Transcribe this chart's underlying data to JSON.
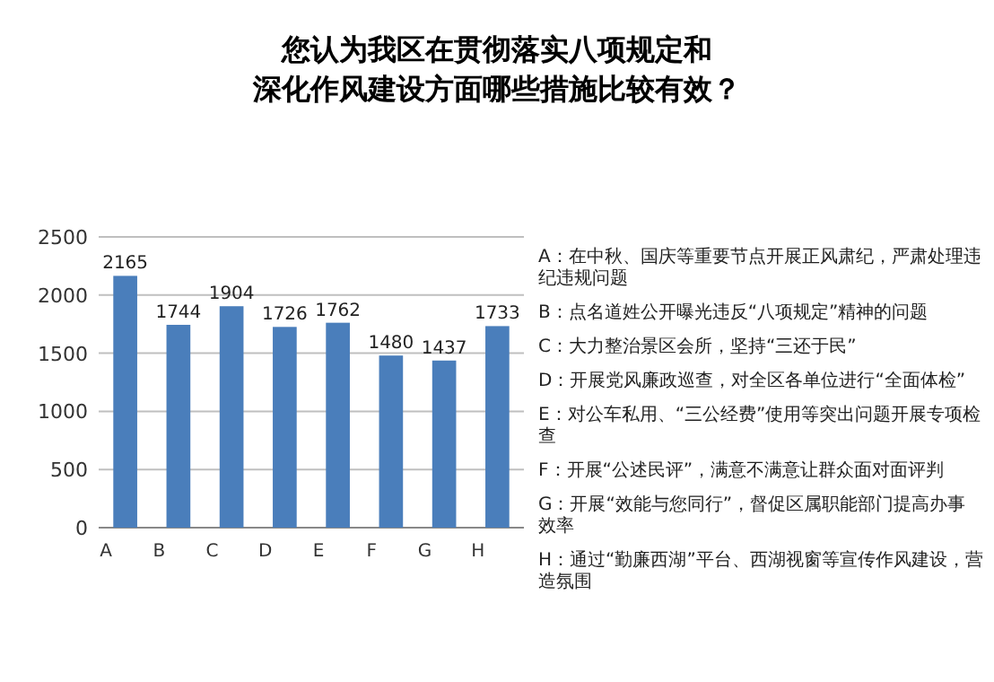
{
  "chart_data": {
    "type": "bar",
    "title": "您认为我区在贯彻落实八项规定和深化作风建设方面哪些措施比较有效？",
    "categories": [
      "A",
      "B",
      "C",
      "D",
      "E",
      "F",
      "G",
      "H"
    ],
    "values": [
      2165,
      1744,
      1904,
      1726,
      1762,
      1480,
      1437,
      1733
    ],
    "color": "#4a7ebb",
    "ylim": [
      0,
      2500
    ],
    "yticks": [
      0,
      500,
      1000,
      1500,
      2000,
      2500
    ],
    "grid": "y",
    "data_labels": true,
    "annotations": [
      "A：在中秋、国庆等重要节点开展正风肃纪，严肃处理违纪违规问题",
      "B：点名道姓公开曝光违反“八项规定”精神的问题",
      "C：大力整治景区会所，坚持“三还于民”",
      "D：开展党风廉政巡查，对全区各单位进行“全面体检”",
      "E：对公车私用、“三公经费”使用等突出问题开展专项检查",
      "F：开展“公述民评”，满意不满意让群众面对面评判",
      "G：开展“效能与您同行”，督促区属职能部门提高办事效率",
      "H：通过“勤廉西湖”平台、西湖视窗等宣传作风建设，营造氛围"
    ]
  }
}
